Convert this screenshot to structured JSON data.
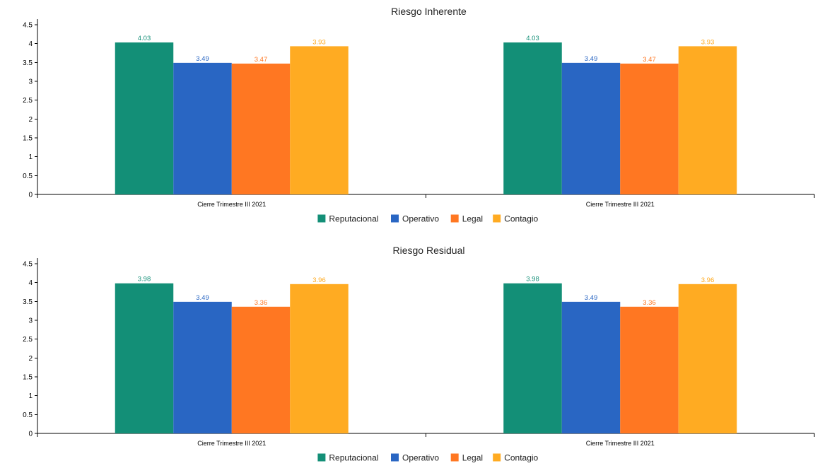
{
  "chart_data": [
    {
      "type": "bar",
      "title": "Riesgo Inherente",
      "categories": [
        "Cierre Trimestre III 2021",
        "Cierre Trimestre III 2021"
      ],
      "series": [
        {
          "name": "Reputacional",
          "values": [
            4.03,
            4.03
          ],
          "color": "#138f77"
        },
        {
          "name": "Operativo",
          "values": [
            3.49,
            3.49
          ],
          "color": "#2966c3"
        },
        {
          "name": "Legal",
          "values": [
            3.47,
            3.47
          ],
          "color": "#ff7722"
        },
        {
          "name": "Contagio",
          "values": [
            3.93,
            3.93
          ],
          "color": "#ffab22"
        }
      ],
      "xlabel": "",
      "ylabel": "",
      "ylim": [
        0,
        4.5
      ],
      "yticks": [
        "0",
        "0.5",
        "1",
        "1.5",
        "2",
        "2.5",
        "3",
        "3.5",
        "4",
        "4.5"
      ],
      "grid": false,
      "legend": "bottom-center"
    },
    {
      "type": "bar",
      "title": "Riesgo Residual",
      "categories": [
        "Cierre Trimestre III 2021",
        "Cierre Trimestre III 2021"
      ],
      "series": [
        {
          "name": "Reputacional",
          "values": [
            3.98,
            3.98
          ],
          "color": "#138f77"
        },
        {
          "name": "Operativo",
          "values": [
            3.49,
            3.49
          ],
          "color": "#2966c3"
        },
        {
          "name": "Legal",
          "values": [
            3.36,
            3.36
          ],
          "color": "#ff7722"
        },
        {
          "name": "Contagio",
          "values": [
            3.96,
            3.96
          ],
          "color": "#ffab22"
        }
      ],
      "xlabel": "",
      "ylabel": "",
      "ylim": [
        0,
        4.5
      ],
      "yticks": [
        "0",
        "0.5",
        "1",
        "1.5",
        "2",
        "2.5",
        "3",
        "3.5",
        "4",
        "4.5"
      ],
      "grid": false,
      "legend": "bottom-center"
    }
  ]
}
